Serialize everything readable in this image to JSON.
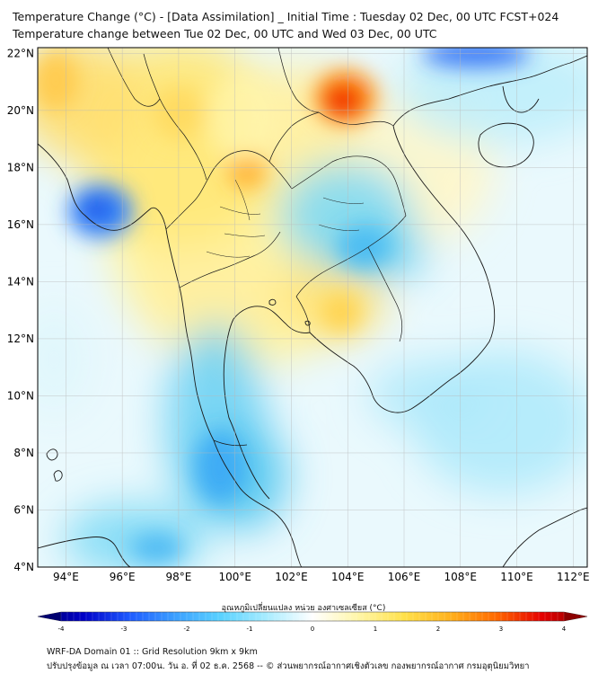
{
  "header": {
    "title_line1": "Temperature Change (°C) - [Data Assimilation] _ Initial Time : Tuesday 02 Dec, 00 UTC FCST+024",
    "title_line2": "Temperature change between Tue 02 Dec, 00 UTC and Wed 03 Dec, 00 UTC"
  },
  "map": {
    "lat_labels": [
      "22°N",
      "20°N",
      "18°N",
      "16°N",
      "14°N",
      "12°N",
      "10°N",
      "8°N",
      "6°N",
      "4°N"
    ],
    "lat_values": [
      22,
      20,
      18,
      16,
      14,
      12,
      10,
      8,
      6,
      4
    ],
    "lon_labels": [
      "94°E",
      "96°E",
      "98°E",
      "100°E",
      "102°E",
      "104°E",
      "106°E",
      "108°E",
      "110°E",
      "112°E"
    ],
    "lon_values": [
      94,
      96,
      98,
      100,
      102,
      104,
      106,
      108,
      110,
      112
    ],
    "extent": {
      "lon_min": 93,
      "lon_max": 112.5,
      "lat_min": 4,
      "lat_max": 22.2
    },
    "features": [
      {
        "name": "warm-hotspot-north-vietnam-laos",
        "lon": 103.5,
        "lat": 20.6,
        "value": 3.2
      },
      {
        "name": "warm-patch-north-thailand",
        "lon": 100.3,
        "lat": 17.7,
        "value": 2.0
      },
      {
        "name": "warm-patch-myanmar-northwest",
        "lon": 93.5,
        "lat": 21.0,
        "value": 1.6
      },
      {
        "name": "warm-patch-cambodia-west",
        "lon": 103.0,
        "lat": 12.8,
        "value": 1.4
      },
      {
        "name": "cold-spot-bay-of-bengal",
        "lon": 95.2,
        "lat": 16.6,
        "value": -2.4
      },
      {
        "name": "cold-patch-northeast-thailand",
        "lon": 104.0,
        "lat": 16.0,
        "value": -1.4
      },
      {
        "name": "cold-patch-gulf-coast-south",
        "lon": 100.0,
        "lat": 8.5,
        "value": -1.5
      },
      {
        "name": "cold-spot-gulf-of-tonkin",
        "lon": 108.8,
        "lat": 22.0,
        "value": -2.6
      },
      {
        "name": "cold-patch-south-china-sea",
        "lon": 108.5,
        "lat": 8.5,
        "value": -1.0
      },
      {
        "name": "cold-patch-andaman-south",
        "lon": 97.0,
        "lat": 4.7,
        "value": -1.2
      }
    ]
  },
  "colorbar": {
    "title": "อุณหภูมิเปลี่ยนแปลง หน่วย องศาเซลเซียส (°C)",
    "tick_labels": [
      "-4",
      "-3",
      "-2",
      "-1",
      "0",
      "1",
      "2",
      "3",
      "4"
    ],
    "tick_values": [
      -4,
      -3,
      -2,
      -1,
      0,
      1,
      2,
      3,
      4
    ],
    "colors": [
      "#000070",
      "#0000c8",
      "#1e5aff",
      "#3ca0ff",
      "#5ad2ff",
      "#a8ecff",
      "#ffffff",
      "#fff6a8",
      "#ffe14b",
      "#ffb21e",
      "#ff6a00",
      "#e60000",
      "#8c0000"
    ]
  },
  "footer": {
    "line1": "WRF-DA Domain 01 :: Grid Resolution 9km x 9km",
    "line2": "ปรับปรุงข้อมูล ณ เวลา 07:00น. วัน อ. ที่ 02 ธ.ค. 2568 -- © ส่วนพยากรณ์อากาศเชิงตัวเลข กองพยากรณ์อากาศ กรมอุตุนิยมวิทยา"
  }
}
